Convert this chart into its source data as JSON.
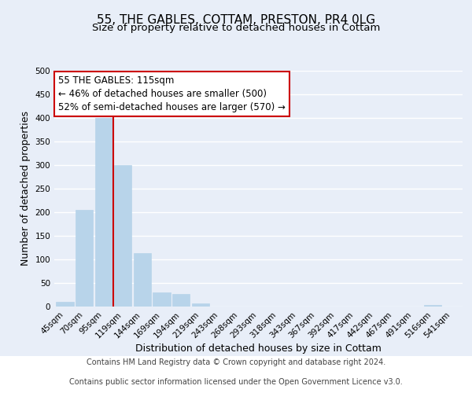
{
  "title": "55, THE GABLES, COTTAM, PRESTON, PR4 0LG",
  "subtitle": "Size of property relative to detached houses in Cottam",
  "xlabel": "Distribution of detached houses by size in Cottam",
  "ylabel": "Number of detached properties",
  "bar_labels": [
    "45sqm",
    "70sqm",
    "95sqm",
    "119sqm",
    "144sqm",
    "169sqm",
    "194sqm",
    "219sqm",
    "243sqm",
    "268sqm",
    "293sqm",
    "318sqm",
    "343sqm",
    "367sqm",
    "392sqm",
    "417sqm",
    "442sqm",
    "467sqm",
    "491sqm",
    "516sqm",
    "541sqm"
  ],
  "bar_values": [
    10,
    205,
    400,
    300,
    113,
    30,
    27,
    6,
    0,
    0,
    0,
    0,
    0,
    0,
    0,
    0,
    0,
    0,
    0,
    3,
    0
  ],
  "bar_color": "#b8d4ea",
  "bar_edge_color": "#b8d4ea",
  "vline_color": "#cc0000",
  "vline_x_index": 3,
  "ylim": [
    0,
    500
  ],
  "annotation_title": "55 THE GABLES: 115sqm",
  "annotation_line1": "← 46% of detached houses are smaller (500)",
  "annotation_line2": "52% of semi-detached houses are larger (570) →",
  "footer_line1": "Contains HM Land Registry data © Crown copyright and database right 2024.",
  "footer_line2": "Contains public sector information licensed under the Open Government Licence v3.0.",
  "background_color": "#e8eef8",
  "plot_bg_color": "#e8eef8",
  "grid_color": "#ffffff",
  "footer_bg": "#ffffff",
  "title_fontsize": 11,
  "subtitle_fontsize": 9.5,
  "axis_label_fontsize": 9,
  "tick_fontsize": 7.5,
  "footer_fontsize": 7,
  "annotation_fontsize": 8.5
}
